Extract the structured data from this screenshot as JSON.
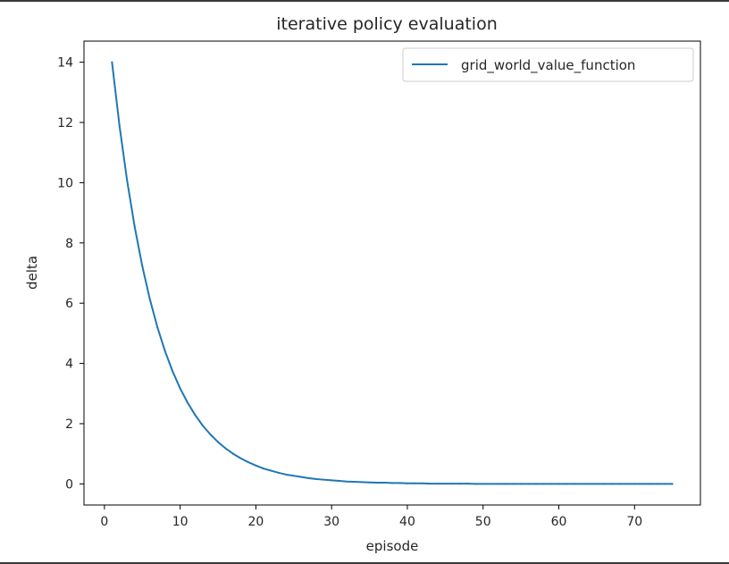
{
  "chart_data": {
    "type": "line",
    "title": "iterative policy evaluation",
    "xlabel": "episode",
    "ylabel": "delta",
    "xlim": [
      -2.7,
      78.7
    ],
    "ylim": [
      -0.7,
      14.7
    ],
    "xticks": [
      0,
      10,
      20,
      30,
      40,
      50,
      60,
      70
    ],
    "yticks": [
      0,
      2,
      4,
      6,
      8,
      10,
      12,
      14
    ],
    "grid": false,
    "legend_position": "upper right",
    "series": [
      {
        "name": "grid_world_value_function",
        "color": "#1f77b4",
        "x": [
          1,
          2,
          3,
          4,
          5,
          6,
          7,
          8,
          9,
          10,
          11,
          12,
          13,
          14,
          15,
          16,
          17,
          18,
          19,
          20,
          21,
          22,
          23,
          24,
          25,
          26,
          27,
          28,
          29,
          30,
          31,
          32,
          33,
          34,
          35,
          36,
          37,
          38,
          39,
          40,
          41,
          42,
          43,
          44,
          45,
          46,
          47,
          48,
          49,
          50,
          51,
          52,
          53,
          54,
          55,
          56,
          57,
          58,
          59,
          60,
          61,
          62,
          63,
          64,
          65,
          66,
          67,
          68,
          69,
          70,
          71,
          72,
          73,
          74,
          75
        ],
        "y": [
          14.0,
          11.87,
          10.06,
          8.53,
          7.23,
          6.13,
          5.2,
          4.41,
          3.74,
          3.17,
          2.69,
          2.28,
          1.93,
          1.64,
          1.39,
          1.18,
          1.0,
          0.85,
          0.72,
          0.61,
          0.51,
          0.44,
          0.37,
          0.31,
          0.27,
          0.23,
          0.19,
          0.16,
          0.14,
          0.12,
          0.1,
          0.08,
          0.07,
          0.06,
          0.05,
          0.04,
          0.04,
          0.03,
          0.03,
          0.02,
          0.02,
          0.02,
          0.01,
          0.01,
          0.01,
          0.01,
          0.01,
          0.01,
          0.0,
          0.0,
          0.0,
          0.0,
          0.0,
          0.0,
          0.0,
          0.0,
          0.0,
          0.0,
          0.0,
          0.0,
          0.0,
          0.0,
          0.0,
          0.0,
          0.0,
          0.0,
          0.0,
          0.0,
          0.0,
          0.0,
          0.0,
          0.0,
          0.0,
          0.0,
          0.0
        ]
      }
    ]
  }
}
